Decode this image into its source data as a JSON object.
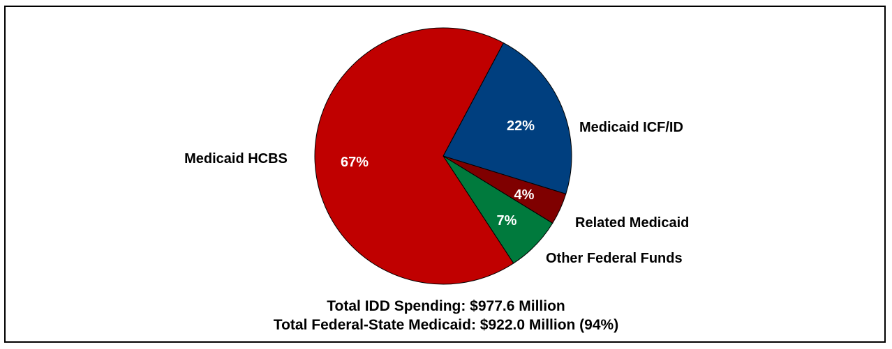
{
  "chart_data": {
    "type": "pie",
    "slices": [
      {
        "label": "Medicaid HCBS",
        "value": 67,
        "value_label": "67%",
        "color": "#C00000"
      },
      {
        "label": "Medicaid ICF/ID",
        "value": 22,
        "value_label": "22%",
        "color": "#003F7F"
      },
      {
        "label": "Related Medicaid",
        "value": 4,
        "value_label": "4%",
        "color": "#7F0000"
      },
      {
        "label": "Other Federal Funds",
        "value": 7,
        "value_label": "7%",
        "color": "#007A3D"
      }
    ],
    "annotations": [
      "Total IDD Spending: $977.6 Million",
      "Total Federal-State Medicaid: $922.0 Million (94%)"
    ]
  }
}
